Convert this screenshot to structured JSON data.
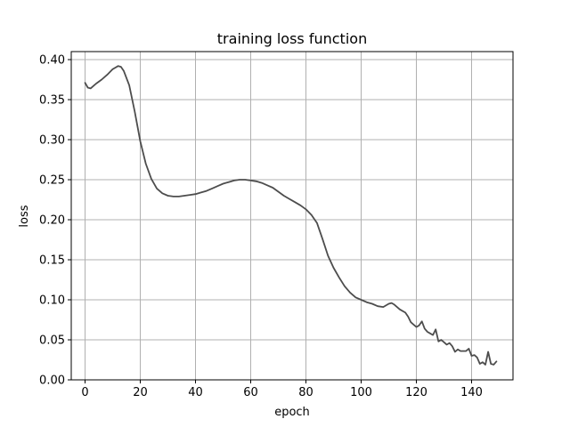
{
  "chart_data": {
    "type": "line",
    "title": "training loss function",
    "xlabel": "epoch",
    "ylabel": "loss",
    "xlim": [
      -5,
      155
    ],
    "ylim": [
      0.0,
      0.41
    ],
    "xticks": [
      0,
      20,
      40,
      60,
      80,
      100,
      120,
      140
    ],
    "yticks": [
      0.0,
      0.05,
      0.1,
      0.15,
      0.2,
      0.25,
      0.3,
      0.35,
      0.4
    ],
    "xtick_labels": [
      "0",
      "20",
      "40",
      "60",
      "80",
      "100",
      "120",
      "140"
    ],
    "ytick_labels": [
      "0.00",
      "0.05",
      "0.10",
      "0.15",
      "0.20",
      "0.25",
      "0.30",
      "0.35",
      "0.40"
    ],
    "grid": true,
    "line_color": "#4d4d4d",
    "series": [
      {
        "x": [
          0,
          1,
          2,
          3,
          4,
          6,
          8,
          10,
          12,
          13,
          14,
          16,
          18,
          20,
          22,
          24,
          26,
          28,
          30,
          32,
          34,
          36,
          38,
          40,
          42,
          44,
          46,
          48,
          50,
          52,
          54,
          56,
          58,
          60,
          62,
          64,
          66,
          68,
          70,
          72,
          74,
          76,
          78,
          80,
          82,
          84,
          85,
          86,
          88,
          90,
          92,
          94,
          96,
          98,
          100,
          102,
          104,
          106,
          108,
          110,
          111,
          112,
          114,
          116,
          117,
          118,
          119,
          120,
          121,
          122,
          123,
          124,
          125,
          126,
          127,
          128,
          129,
          130,
          131,
          132,
          133,
          134,
          135,
          136,
          137,
          138,
          139,
          140,
          141,
          142,
          143,
          144,
          145,
          146,
          147,
          148,
          149
        ],
        "y": [
          0.371,
          0.365,
          0.364,
          0.367,
          0.37,
          0.375,
          0.381,
          0.388,
          0.392,
          0.391,
          0.386,
          0.368,
          0.335,
          0.298,
          0.27,
          0.251,
          0.239,
          0.233,
          0.23,
          0.229,
          0.229,
          0.23,
          0.231,
          0.232,
          0.234,
          0.236,
          0.239,
          0.242,
          0.245,
          0.247,
          0.249,
          0.25,
          0.25,
          0.249,
          0.248,
          0.246,
          0.243,
          0.24,
          0.235,
          0.23,
          0.226,
          0.222,
          0.218,
          0.213,
          0.206,
          0.196,
          0.186,
          0.176,
          0.155,
          0.14,
          0.128,
          0.117,
          0.109,
          0.103,
          0.1,
          0.097,
          0.095,
          0.092,
          0.091,
          0.095,
          0.096,
          0.094,
          0.088,
          0.084,
          0.079,
          0.072,
          0.069,
          0.066,
          0.068,
          0.073,
          0.064,
          0.06,
          0.058,
          0.056,
          0.063,
          0.048,
          0.05,
          0.047,
          0.044,
          0.046,
          0.042,
          0.035,
          0.038,
          0.036,
          0.036,
          0.036,
          0.039,
          0.03,
          0.031,
          0.028,
          0.02,
          0.022,
          0.019,
          0.035,
          0.02,
          0.019,
          0.023
        ]
      }
    ]
  }
}
